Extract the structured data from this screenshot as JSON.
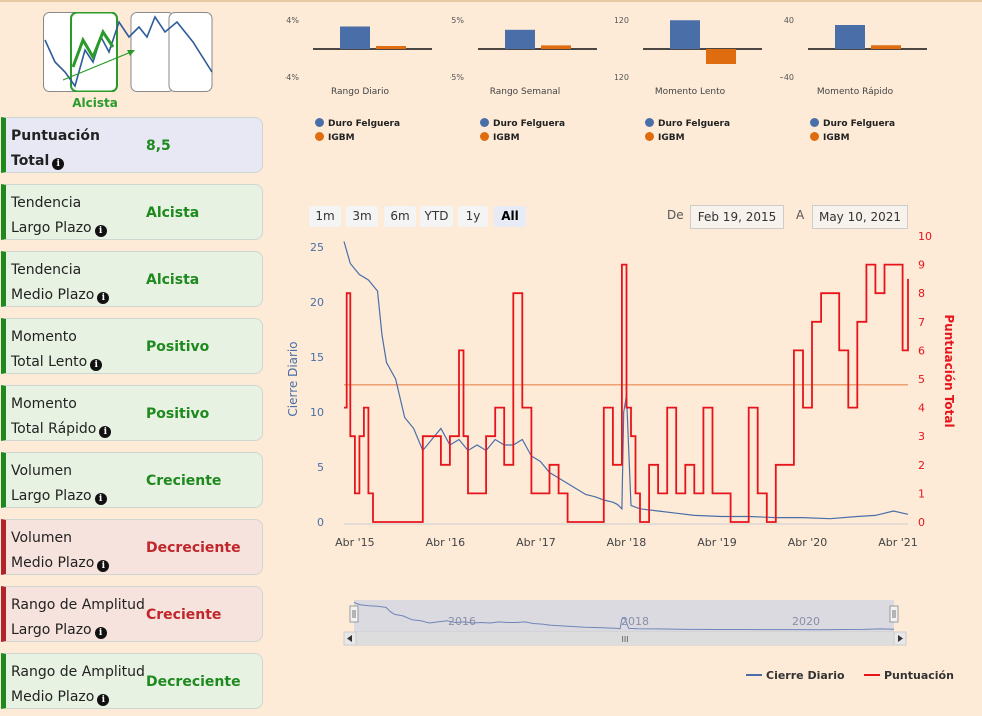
{
  "trend": {
    "label": "Alcista"
  },
  "cards": [
    {
      "id": "total",
      "line1": "Puntuación",
      "line2": "Total",
      "value": "8,5",
      "kind": "total"
    },
    {
      "id": "tendencia-largo",
      "line1": "Tendencia",
      "line2": "Largo Plazo",
      "value": "Alcista",
      "kind": "green"
    },
    {
      "id": "tendencia-medio",
      "line1": "Tendencia",
      "line2": "Medio Plazo",
      "value": "Alcista",
      "kind": "green"
    },
    {
      "id": "momento-lento",
      "line1": "Momento",
      "line2": "Total Lento",
      "value": "Positivo",
      "kind": "green"
    },
    {
      "id": "momento-rapido",
      "line1": "Momento",
      "line2": "Total Rápido",
      "value": "Positivo",
      "kind": "green"
    },
    {
      "id": "volumen-largo",
      "line1": "Volumen",
      "line2": "Largo Plazo",
      "value": "Creciente",
      "kind": "green"
    },
    {
      "id": "volumen-medio",
      "line1": "Volumen",
      "line2": "Medio Plazo",
      "value": "Decreciente",
      "kind": "red"
    },
    {
      "id": "rango-largo",
      "line1": "Rango de Amplitud",
      "line2": "Largo Plazo",
      "value": "Creciente",
      "kind": "red"
    },
    {
      "id": "rango-medio",
      "line1": "Rango de Amplitud",
      "line2": "Medio Plazo",
      "value": "Decreciente",
      "kind": "green"
    }
  ],
  "mini_charts": [
    {
      "title": "Rango Diario",
      "top_label": "4%",
      "bottom_label": "−4%",
      "range": 4,
      "values": [
        3.0,
        0.4
      ]
    },
    {
      "title": "Rango Semanal",
      "top_label": "5%",
      "bottom_label": "−5%",
      "range": 5,
      "values": [
        3.2,
        0.6
      ]
    },
    {
      "title": "Momento Lento",
      "top_label": "120",
      "bottom_label": "−120",
      "range": 120,
      "values": [
        115,
        -60
      ]
    },
    {
      "title": "Momento Rápido",
      "top_label": "40",
      "bottom_label": "−40",
      "range": 40,
      "values": [
        32,
        5
      ]
    }
  ],
  "mini_legend": {
    "series1": "Duro Felguera",
    "series2": "IGBM"
  },
  "range_selector": {
    "buttons": [
      "1m",
      "3m",
      "6m",
      "YTD",
      "1y",
      "All"
    ],
    "active": "All",
    "from_label": "De",
    "from": "Feb 19, 2015",
    "to_label": "A",
    "to": "May 10, 2021"
  },
  "colors": {
    "blue": "#4a6fa8",
    "orange": "#e06c10",
    "red": "#e8141c",
    "green": "#1e8a1e"
  },
  "chart_data": {
    "type": "line",
    "left_axis_label": "Cierre Diario",
    "right_axis_label": "Puntuación Total",
    "x_ticks": [
      "Abr '15",
      "Abr '16",
      "Abr '17",
      "Abr '18",
      "Abr '19",
      "Abr '20",
      "Abr '21"
    ],
    "left_ticks": [
      "0",
      "5",
      "10",
      "15",
      "20",
      "25"
    ],
    "right_ticks": [
      "0",
      "1",
      "2",
      "3",
      "4",
      "5",
      "6",
      "7",
      "8",
      "9",
      "10"
    ],
    "ylim_left": [
      0,
      26
    ],
    "ylim_right": [
      0,
      10
    ],
    "xlim": [
      2015.13,
      2021.36
    ],
    "reference_line_right": 4.8,
    "series": [
      {
        "name": "Cierre Diario",
        "axis": "left",
        "color": "#4a6fa8",
        "x": [
          2015.13,
          2015.2,
          2015.3,
          2015.4,
          2015.5,
          2015.55,
          2015.6,
          2015.7,
          2015.8,
          2015.9,
          2016.0,
          2016.1,
          2016.2,
          2016.3,
          2016.4,
          2016.5,
          2016.6,
          2016.7,
          2016.8,
          2016.9,
          2017.0,
          2017.1,
          2017.2,
          2017.3,
          2017.4,
          2017.5,
          2017.6,
          2017.7,
          2017.8,
          2017.9,
          2018.0,
          2018.1,
          2018.15,
          2018.2,
          2018.22,
          2018.25,
          2018.3,
          2018.4,
          2018.6,
          2018.8,
          2019.0,
          2019.3,
          2019.6,
          2019.9,
          2020.2,
          2020.5,
          2020.8,
          2021.0,
          2021.2,
          2021.36
        ],
        "y": [
          25.5,
          23.5,
          22.5,
          22,
          21,
          17,
          14.5,
          13,
          9.5,
          8.5,
          6.5,
          7.5,
          8.5,
          7,
          7.5,
          6.5,
          7,
          6.5,
          7.5,
          7,
          7,
          7.5,
          6,
          5.5,
          4.5,
          4,
          3.5,
          3,
          2.5,
          2.3,
          2,
          1.8,
          1.6,
          1.2,
          10,
          11.5,
          1.5,
          1.2,
          1,
          0.8,
          0.6,
          0.5,
          0.5,
          0.4,
          0.4,
          0.3,
          0.5,
          0.6,
          1.0,
          0.7
        ]
      },
      {
        "name": "Puntuación",
        "axis": "right",
        "color": "#e8141c",
        "x": [
          2015.13,
          2015.16,
          2015.2,
          2015.25,
          2015.3,
          2015.35,
          2015.4,
          2015.45,
          2015.5,
          2015.55,
          2015.6,
          2015.7,
          2015.8,
          2015.9,
          2016.0,
          2016.1,
          2016.2,
          2016.3,
          2016.4,
          2016.45,
          2016.5,
          2016.6,
          2016.7,
          2016.8,
          2016.9,
          2017.0,
          2017.1,
          2017.2,
          2017.3,
          2017.4,
          2017.5,
          2017.6,
          2017.7,
          2017.8,
          2017.9,
          2018.0,
          2018.1,
          2018.2,
          2018.25,
          2018.3,
          2018.35,
          2018.4,
          2018.5,
          2018.6,
          2018.7,
          2018.8,
          2018.9,
          2019.0,
          2019.1,
          2019.2,
          2019.3,
          2019.4,
          2019.5,
          2019.6,
          2019.7,
          2019.8,
          2019.9,
          2020.0,
          2020.1,
          2020.2,
          2020.3,
          2020.4,
          2020.5,
          2020.6,
          2020.7,
          2020.8,
          2020.9,
          2021.0,
          2021.1,
          2021.2,
          2021.3,
          2021.36
        ],
        "y": [
          4,
          8,
          3,
          1,
          3,
          4,
          1,
          0,
          0,
          0,
          0,
          0,
          0,
          0,
          3,
          3,
          2,
          3,
          6,
          3,
          1,
          1,
          3,
          4,
          2,
          8,
          4,
          1,
          1,
          2,
          1,
          0,
          0,
          0,
          0,
          4,
          2,
          9,
          4,
          3,
          1,
          0,
          2,
          1,
          4,
          1,
          2,
          1,
          4,
          1,
          1,
          0,
          0,
          4,
          1,
          0,
          2,
          2,
          6,
          4,
          7,
          8,
          8,
          6,
          4,
          7,
          9,
          8,
          9,
          9,
          6,
          8.5
        ]
      }
    ]
  },
  "navigator": {
    "labels": [
      "2016",
      "2018",
      "2020"
    ],
    "handle_glyph": "III"
  },
  "legend_bottom": {
    "s1": "Cierre Diario",
    "s2": "Puntuación"
  }
}
